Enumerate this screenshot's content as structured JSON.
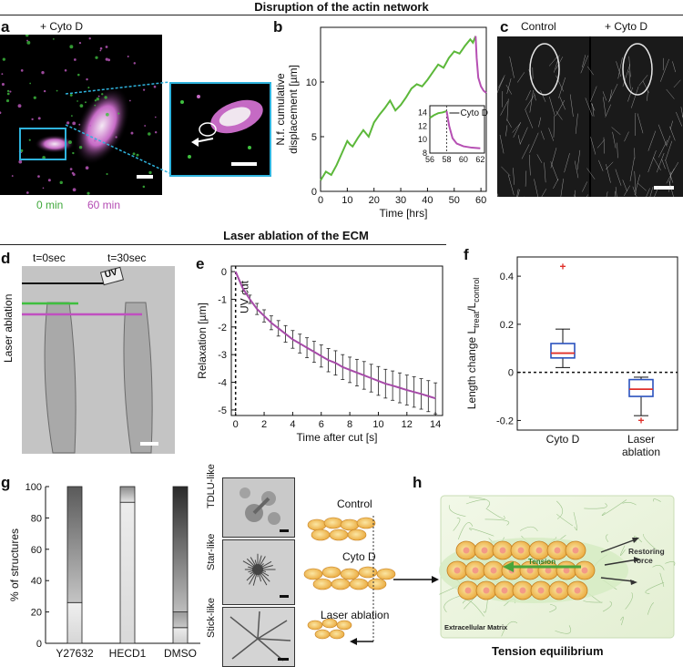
{
  "sections": {
    "top_title": "Disruption of the actin network",
    "middle_title": "Laser ablation of the ECM"
  },
  "panel_labels": [
    "a",
    "b",
    "c",
    "d",
    "e",
    "f",
    "g",
    "h"
  ],
  "panel_a": {
    "title": "+ Cyto D",
    "time_green": "0 min",
    "time_magenta": "60 min"
  },
  "panel_c": {
    "label_left": "Control",
    "label_right": "+ Cyto D"
  },
  "panel_d": {
    "t0": "t=0sec",
    "t30": "t=30sec",
    "uv": "UV",
    "side_label": "Laser ablation"
  },
  "panel_g_images": [
    "TDLU-like",
    "Star-like",
    "Stick-like"
  ],
  "panel_h": {
    "control": "Control",
    "cytod": "Cyto D",
    "laser": "Laser ablation",
    "tension": "Tension",
    "restoring1": "Restoring",
    "restoring2": "force",
    "ecm": "Extracellular Matrix",
    "caption": "Tension equilibrium"
  },
  "chart_data": [
    {
      "id": "b",
      "type": "line",
      "xlabel": "Time [hrs]",
      "ylabel_line1": "N.f. cumulative",
      "ylabel_line2": "displacement [µm]",
      "xlim": [
        0,
        62
      ],
      "ylim": [
        0,
        15
      ],
      "xticks": [
        0,
        10,
        20,
        30,
        40,
        50,
        60
      ],
      "yticks": [
        0,
        5,
        10
      ],
      "series": [
        {
          "color": "#5cb83a",
          "x": [
            0,
            2,
            4,
            6,
            8,
            10,
            11,
            12,
            14,
            16,
            18,
            20,
            22,
            24,
            26,
            28,
            30,
            32,
            34,
            36,
            38,
            40,
            42,
            44,
            46,
            48,
            50,
            52,
            54,
            56,
            57,
            58
          ],
          "y": [
            1.0,
            1.8,
            1.5,
            2.4,
            3.5,
            4.6,
            4.3,
            4.1,
            4.9,
            5.6,
            5.0,
            6.3,
            7.0,
            7.6,
            8.3,
            7.4,
            7.9,
            8.6,
            9.4,
            9.8,
            9.6,
            10.2,
            10.9,
            11.6,
            11.3,
            12.2,
            12.8,
            12.6,
            13.3,
            13.9,
            13.6,
            14.2
          ]
        },
        {
          "color": "#b64fb3",
          "x": [
            58,
            58.4,
            59,
            60,
            61,
            62
          ],
          "y": [
            14.2,
            12.2,
            10.4,
            9.6,
            9.2,
            9.0
          ]
        }
      ],
      "inset": {
        "annotation": "Cyto D",
        "xlim": [
          56,
          62.5
        ],
        "ylim": [
          8,
          15
        ],
        "xticks": [
          56,
          58,
          60,
          62
        ],
        "yticks": [
          8,
          10,
          12,
          14
        ],
        "series": [
          {
            "color": "#5cb83a",
            "x": [
              56,
              56.5,
              57,
              57.5,
              58
            ],
            "y": [
              13.2,
              13.6,
              13.9,
              14.0,
              14.2
            ]
          },
          {
            "color": "#b64fb3",
            "x": [
              58,
              58.3,
              58.7,
              59.2,
              60,
              61,
              62
            ],
            "y": [
              14.2,
              12.0,
              10.2,
              9.4,
              9.0,
              8.8,
              8.7
            ]
          }
        ]
      }
    },
    {
      "id": "e",
      "type": "line",
      "xlabel": "Time after cut [s]",
      "ylabel": "Relaxation [µm]",
      "annotation": "UV cut",
      "xlim": [
        -0.3,
        14.5
      ],
      "ylim": [
        -5.2,
        0.2
      ],
      "xticks": [
        0,
        2,
        4,
        6,
        8,
        10,
        12,
        14
      ],
      "yticks": [
        0,
        -1,
        -2,
        -3,
        -4,
        -5
      ],
      "series": [
        {
          "color": "#a64aa8",
          "x": [
            0,
            0.5,
            1,
            1.5,
            2,
            2.5,
            3,
            3.5,
            4,
            4.5,
            5,
            5.5,
            6,
            6.5,
            7,
            7.5,
            8,
            8.5,
            9,
            9.5,
            10,
            10.5,
            11,
            11.5,
            12,
            12.5,
            13,
            13.5,
            14
          ],
          "y": [
            0,
            -0.6,
            -1.0,
            -1.35,
            -1.6,
            -1.85,
            -2.05,
            -2.25,
            -2.45,
            -2.6,
            -2.75,
            -2.9,
            -3.05,
            -3.2,
            -3.3,
            -3.45,
            -3.55,
            -3.65,
            -3.75,
            -3.85,
            -3.95,
            -4.05,
            -4.12,
            -4.2,
            -4.28,
            -4.35,
            -4.42,
            -4.5,
            -4.58
          ],
          "err": [
            0,
            0.1,
            0.15,
            0.2,
            0.22,
            0.25,
            0.28,
            0.3,
            0.32,
            0.34,
            0.36,
            0.38,
            0.4,
            0.42,
            0.44,
            0.45,
            0.46,
            0.48,
            0.5,
            0.5,
            0.52,
            0.52,
            0.53,
            0.54,
            0.54,
            0.55,
            0.55,
            0.56,
            0.56
          ]
        }
      ]
    },
    {
      "id": "f",
      "type": "box",
      "ylabel_main": "Length change L",
      "ylabel_sub1": "treat",
      "ylabel_mid": "/L",
      "ylabel_sub2": "control",
      "categories": [
        "Cyto D",
        "Laser",
        "ablation"
      ],
      "ylim": [
        -0.24,
        0.48
      ],
      "yticks": [
        0.4,
        0.2,
        0,
        -0.2
      ],
      "boxes": [
        {
          "whisker_low": 0.02,
          "q1": 0.06,
          "median": 0.08,
          "q3": 0.12,
          "whisker_high": 0.18,
          "outliers": [
            0.44
          ]
        },
        {
          "whisker_low": -0.18,
          "q1": -0.1,
          "median": -0.07,
          "q3": -0.03,
          "whisker_high": -0.02,
          "outliers": [
            -0.2
          ]
        }
      ]
    },
    {
      "id": "g",
      "type": "bar",
      "ylabel": "% of structures",
      "categories": [
        "Y27632",
        "HECD1",
        "DMSO"
      ],
      "ylim": [
        0,
        100
      ],
      "yticks": [
        0,
        20,
        40,
        60,
        80,
        100
      ],
      "stacks": [
        [
          {
            "value": 26,
            "c1": "#f0f0f0",
            "c2": "#d6d6d6"
          },
          {
            "value": 74,
            "c1": "#5a5a5a",
            "c2": "#c4c4c4"
          }
        ],
        [
          {
            "value": 90,
            "c1": "#ececec",
            "c2": "#d9d9d9"
          },
          {
            "value": 10,
            "c1": "#8a8a8a",
            "c2": "#e4e4e4"
          }
        ],
        [
          {
            "value": 10,
            "c1": "#ececec",
            "c2": "#d0d0d0"
          },
          {
            "value": 10,
            "c1": "#9a9a9a",
            "c2": "#c8c8c8"
          },
          {
            "value": 80,
            "c1": "#2a2a2a",
            "c2": "#bdbdbd"
          }
        ]
      ]
    }
  ]
}
